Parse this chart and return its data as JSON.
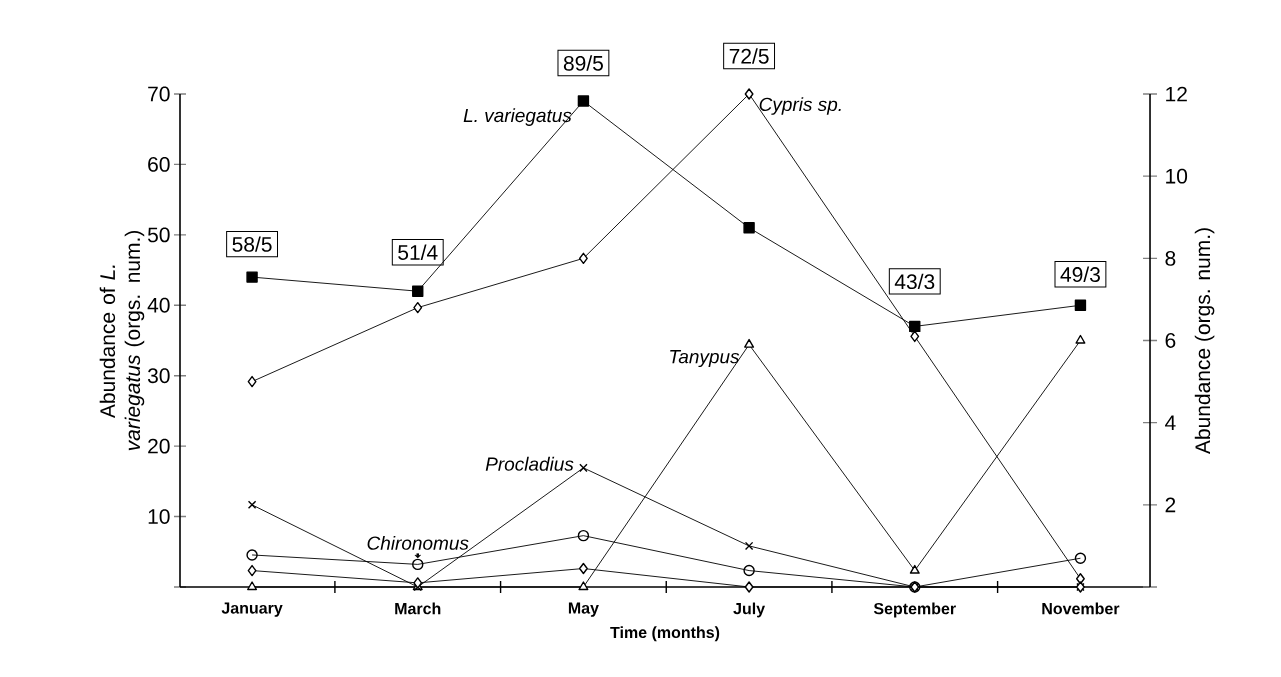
{
  "chart_data": {
    "type": "line",
    "xlabel": "Time (months)",
    "ylabel": "Abundance of *L. variegatus* (orgs. num.)",
    "y2label": "Abundance (orgs. num.)",
    "categories": [
      "January",
      "March",
      "May",
      "July",
      "September",
      "November"
    ],
    "ylim": [
      0,
      70
    ],
    "yticks": [
      {
        "value": 0,
        "label": null
      },
      10,
      20,
      30,
      40,
      50,
      60,
      70
    ],
    "y2lim": [
      0,
      12
    ],
    "y2ticks": [
      {
        "value": 0,
        "label": null
      },
      2,
      4,
      6,
      8,
      10,
      12
    ],
    "grid": false,
    "series": [
      {
        "name": "L. variegatus",
        "color": "#000000",
        "marker": "square",
        "values": [
          44,
          42,
          69,
          51,
          37,
          40
        ]
      },
      {
        "name": "Cypris sp.",
        "color": "#000000",
        "marker": "diamond",
        "axis": "y2",
        "values": [
          5,
          6.8,
          8,
          12,
          6.1,
          0.2
        ]
      },
      {
        "name": "Tanypus",
        "color": "#000000",
        "marker": "triangle",
        "axis": "y2",
        "values": [
          0,
          0,
          0,
          5.9,
          0.4,
          6
        ]
      },
      {
        "name": "Procladius",
        "color": "#000000",
        "marker": "cross",
        "axis": "y2",
        "values": [
          2,
          0,
          2.9,
          1,
          0,
          0
        ]
      },
      {
        "name": "Chironomus",
        "color": "#000000",
        "marker": "circle",
        "axis": "y2",
        "values": [
          0.78,
          0.55,
          1.25,
          0.4,
          0,
          0.7
        ]
      },
      {
        "color": "#000000",
        "marker": "diamond",
        "axis": "y2",
        "values": [
          0.4,
          0.1,
          0.45,
          0,
          0,
          0
        ]
      }
    ],
    "annotations": [
      {
        "text": "58/5",
        "x": "January",
        "y": 44
      },
      {
        "text": "51/4",
        "x": "March",
        "y": 42
      },
      {
        "text": "89/5",
        "x": "May",
        "y": 69
      },
      {
        "text": "72/5",
        "x": "July",
        "y": 70
      },
      {
        "text": "43/3",
        "x": "September",
        "y": 37
      },
      {
        "text": "49/3",
        "x": "November",
        "y": 40
      }
    ]
  }
}
